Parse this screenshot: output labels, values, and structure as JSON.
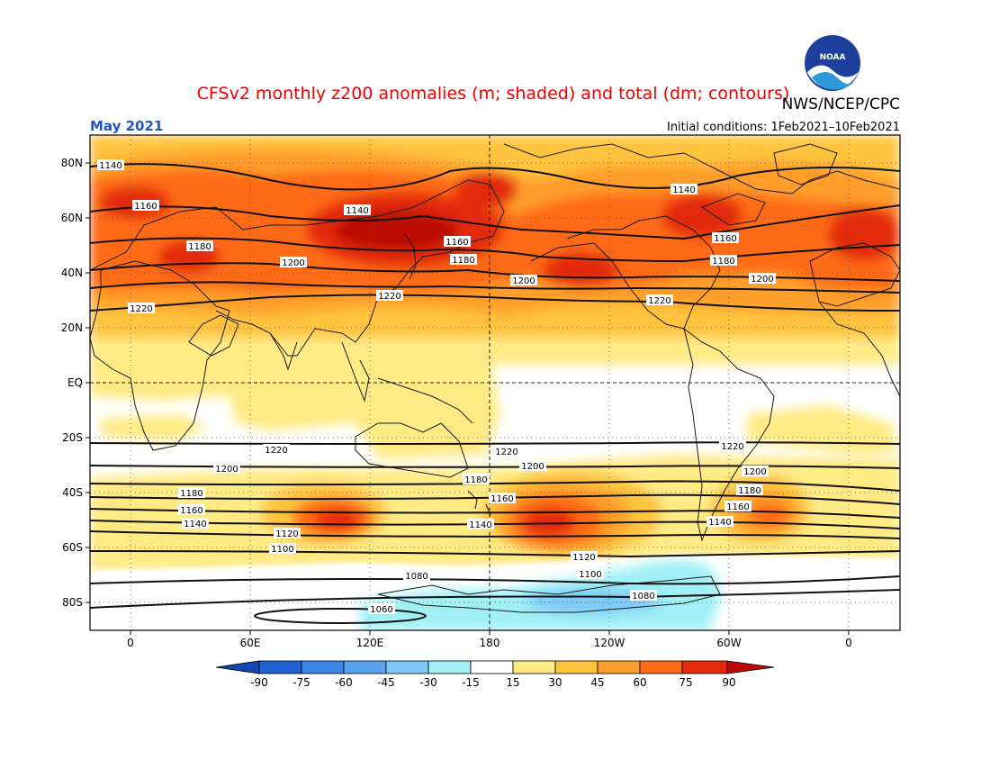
{
  "header": {
    "title": "CFSv2 monthly z200 anomalies (m; shaded) and total (dm; contours)",
    "agency": "NWS/NCEP/CPC",
    "month": "May 2021",
    "init": "Initial conditions: 1Feb2021–10Feb2021",
    "logo_text": "NOAA"
  },
  "colors": {
    "title": "#ee0000",
    "month": "#1e55c8",
    "pos": [
      "#ffea84",
      "#ffc33c",
      "#ff9e2c",
      "#ff6a14",
      "#e32a0b",
      "#bc0a06"
    ],
    "neg": [
      "#a0f0f6",
      "#7ec8f6",
      "#5aa2f0",
      "#3c84e8",
      "#1e62d4",
      "#1446b4"
    ]
  },
  "axes": {
    "y_labels": [
      "80N",
      "60N",
      "40N",
      "20N",
      "EQ",
      "20S",
      "40S",
      "60S",
      "80S"
    ],
    "x_labels": [
      "0",
      "60E",
      "120E",
      "180",
      "120W",
      "60W",
      "0"
    ]
  },
  "colorbar": {
    "labels": [
      "-90",
      "-75",
      "-60",
      "-45",
      "-30",
      "-15",
      "15",
      "30",
      "45",
      "60",
      "75",
      "90"
    ]
  },
  "contour_labels": {
    "n1140a": "1140",
    "n1160a": "1160",
    "n1180a": "1180",
    "n1200a": "1200",
    "n1220a": "1220",
    "n1140b": "1140",
    "n1160b": "1160",
    "n1180b": "1180",
    "n1200b": "1200",
    "n1220b": "1220",
    "n1140c": "1140",
    "n1160c": "1160",
    "n1180c": "1180",
    "n1200c": "1200",
    "s1220a": "1220",
    "s1200a": "1200",
    "s1180a": "1180",
    "s1160a": "1160",
    "s1140a": "1140",
    "s1120a": "1120",
    "s1100a": "1100",
    "s1080a": "1080",
    "s1060a": "1060",
    "s1220b": "1220",
    "s1200b": "1200",
    "s1180b": "1180",
    "s1160b": "1160",
    "s1140b": "1140",
    "s1120b": "1120",
    "s1100b": "1100",
    "s1080b": "1080",
    "s1220c": "1220",
    "s1200c": "1200",
    "s1180c": "1180",
    "s1160c": "1160",
    "s1140c": "1140"
  }
}
